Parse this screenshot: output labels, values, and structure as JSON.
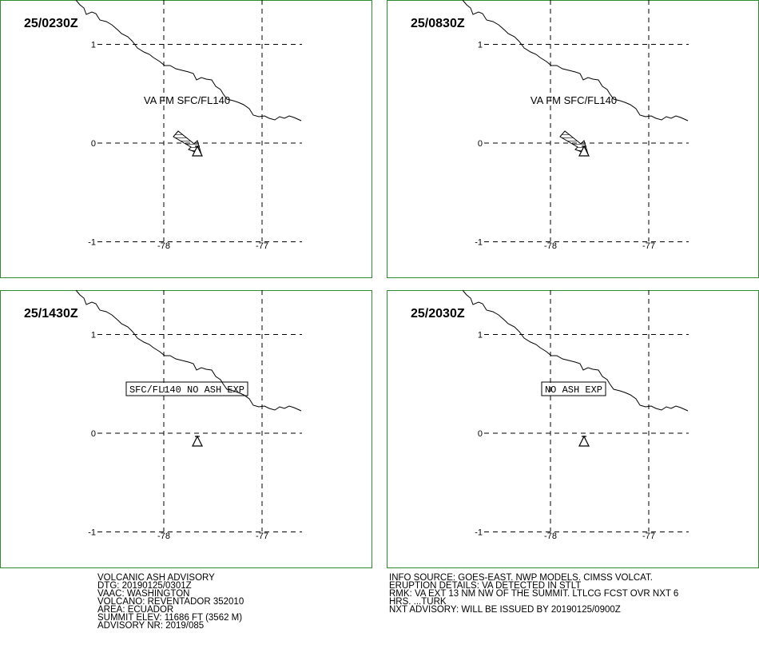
{
  "panels": [
    {
      "time": "25/0230Z",
      "label": "VA FM SFC/FL140",
      "boxed": false,
      "arrow": true
    },
    {
      "time": "25/0830Z",
      "label": "VA FM SFC/FL140",
      "boxed": false,
      "arrow": true
    },
    {
      "time": "25/1430Z",
      "label": "SFC/FL140 NO ASH EXP",
      "boxed": true,
      "arrow": false
    },
    {
      "time": "25/2030Z",
      "label": "NO ASH EXP",
      "boxed": true,
      "arrow": false
    }
  ],
  "grid": {
    "lats": [
      1,
      0,
      -1
    ],
    "lons": [
      -78,
      -77
    ]
  },
  "advisory_left": [
    "VOLCANIC ASH ADVISORY",
    "DTG: 20190125/0301Z",
    "VAAC: WASHINGTON",
    "VOLCANO: REVENTADOR 352010",
    "AREA: ECUADOR",
    "SUMMIT ELEV: 11686 FT (3562 M)",
    "ADVISORY NR: 2019/085"
  ],
  "advisory_right": [
    "INFO SOURCE: GOES-EAST. NWP MODELS. CIMSS VOLCAT.",
    "ERUPTION DETAILS: VA DETECTED IN STLT",
    "RMK: VA EXT 13 NM NW OF THE SUMMIT. LTLCG FCST OVR NXT 6",
    "HRS. ...TURK",
    "NXT ADVISORY: WILL BE ISSUED BY 20190125/0900Z"
  ]
}
